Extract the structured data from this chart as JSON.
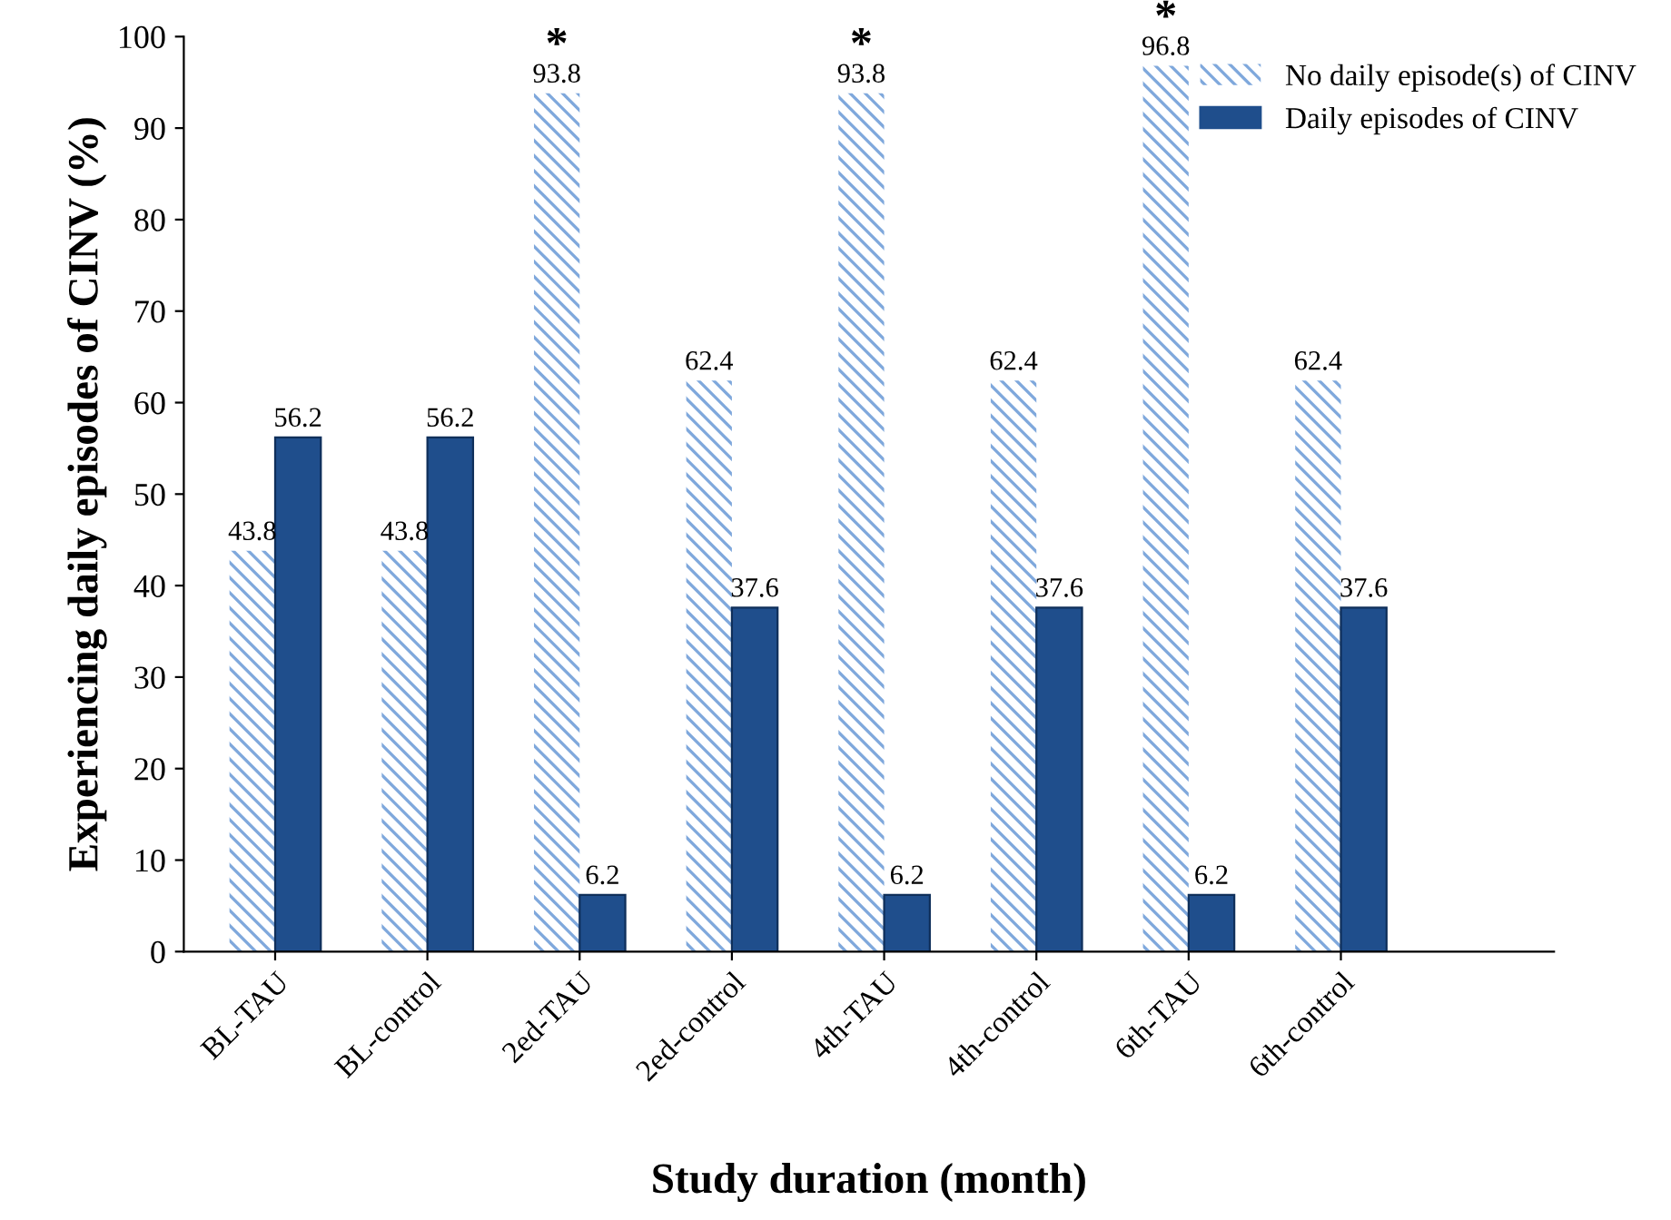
{
  "chart_data": {
    "type": "bar",
    "xlabel": "Study duration (month)",
    "ylabel": "Experiencing daily episodes of CINV (%)",
    "categories": [
      "BL-TAU",
      "BL-control",
      "2ed-TAU",
      "2ed-control",
      "4th-TAU",
      "4th-control",
      "6th-TAU",
      "6th-control"
    ],
    "series": [
      {
        "name": "No daily episode(s) of CINV",
        "color": "#7fa8dc",
        "values": [
          43.8,
          43.8,
          93.8,
          62.4,
          93.8,
          62.4,
          96.8,
          62.4
        ]
      },
      {
        "name": "Daily episodes of CINV",
        "color": "#1f4e8c",
        "values": [
          56.2,
          56.2,
          6.2,
          37.6,
          6.2,
          37.6,
          6.2,
          37.6
        ]
      }
    ],
    "annotations": [
      {
        "text": "*",
        "x": "2ed-TAU",
        "y": 93.8
      },
      {
        "text": "*",
        "x": "4th-TAU",
        "y": 93.8
      },
      {
        "text": "*",
        "x": "6th-TAU",
        "y": 96.8
      }
    ],
    "ylim": [
      0,
      100
    ],
    "yticks": [
      0,
      10,
      20,
      30,
      40,
      50,
      60,
      70,
      80,
      90,
      100
    ],
    "data_labels": true,
    "grid": false,
    "legend": "top right"
  }
}
